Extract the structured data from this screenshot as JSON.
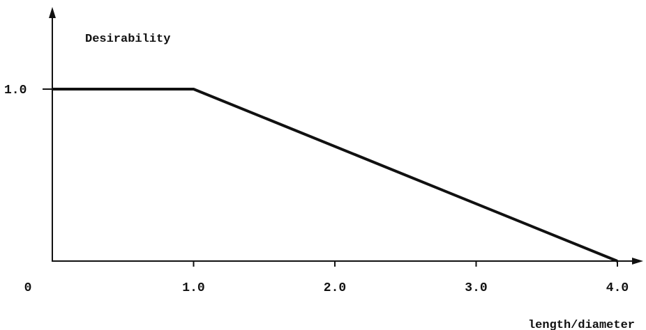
{
  "chart_data": {
    "type": "line",
    "title": "",
    "ylabel": "Desirability",
    "xlabel": "length/diameter",
    "x": [
      0,
      1.0,
      4.0
    ],
    "series": [
      {
        "values": [
          1.0,
          1.0,
          0.0
        ]
      }
    ],
    "xlim": [
      0,
      4.0
    ],
    "ylim": [
      0,
      1.0
    ],
    "x_ticks": [
      {
        "value": 0,
        "label": "0"
      },
      {
        "value": 1.0,
        "label": "1.0"
      },
      {
        "value": 2.0,
        "label": "2.0"
      },
      {
        "value": 3.0,
        "label": "3.0"
      },
      {
        "value": 4.0,
        "label": "4.0"
      }
    ],
    "y_ticks": [
      {
        "value": 1.0,
        "label": "1.0"
      }
    ],
    "grid": false,
    "legend": "none",
    "colors": {
      "line": "#111111",
      "axis": "#111111",
      "background": "#ffffff"
    }
  }
}
